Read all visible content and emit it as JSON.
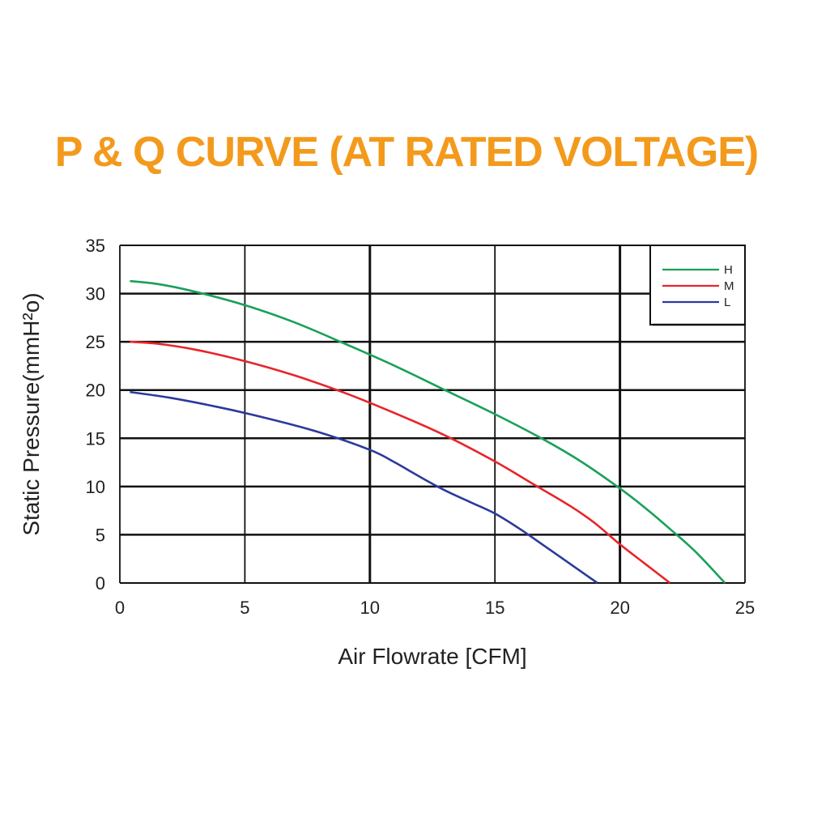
{
  "chart_data": {
    "type": "line",
    "title": "P & Q CURVE (AT RATED VOLTAGE)",
    "xlabel": "Air  Flowrate   [CFM]",
    "ylabel": "Static Pressure(mmH²o)",
    "xlim": [
      0,
      25
    ],
    "ylim": [
      0,
      35
    ],
    "xticks": [
      "0",
      "5",
      "10",
      "15",
      "20",
      "25"
    ],
    "yticks": [
      "0",
      "5",
      "10",
      "15",
      "20",
      "25",
      "30",
      "35"
    ],
    "grid": true,
    "legend_position": "top-right",
    "series": [
      {
        "name": "H",
        "color": "#1aa05a",
        "x": [
          0.4,
          1.5,
          3.0,
          5.0,
          7.0,
          9.0,
          11.0,
          13.0,
          15.0,
          17.0,
          18.5,
          20.0,
          21.0,
          22.0,
          23.0,
          24.2
        ],
        "y": [
          31.3,
          31.0,
          30.2,
          28.8,
          27.0,
          24.8,
          22.5,
          20.0,
          17.5,
          14.8,
          12.5,
          9.8,
          7.8,
          5.6,
          3.3,
          0
        ]
      },
      {
        "name": "M",
        "color": "#e8242a",
        "x": [
          0.4,
          1.5,
          3.0,
          5.0,
          7.0,
          9.0,
          11.0,
          13.0,
          15.0,
          16.5,
          18.0,
          19.0,
          20.0,
          21.0,
          22.0
        ],
        "y": [
          25.0,
          24.8,
          24.2,
          23.0,
          21.5,
          19.7,
          17.6,
          15.3,
          12.6,
          10.3,
          8.0,
          6.2,
          4.0,
          2.0,
          0
        ]
      },
      {
        "name": "L",
        "color": "#2b3a9c",
        "x": [
          0.4,
          2.0,
          4.0,
          6.0,
          8.0,
          10.0,
          11.0,
          12.0,
          13.0,
          14.0,
          15.0,
          16.0,
          17.0,
          18.0,
          19.1
        ],
        "y": [
          19.8,
          19.2,
          18.2,
          17.0,
          15.6,
          13.8,
          12.5,
          11.0,
          9.6,
          8.4,
          7.2,
          5.6,
          3.8,
          2.0,
          0
        ]
      }
    ]
  }
}
